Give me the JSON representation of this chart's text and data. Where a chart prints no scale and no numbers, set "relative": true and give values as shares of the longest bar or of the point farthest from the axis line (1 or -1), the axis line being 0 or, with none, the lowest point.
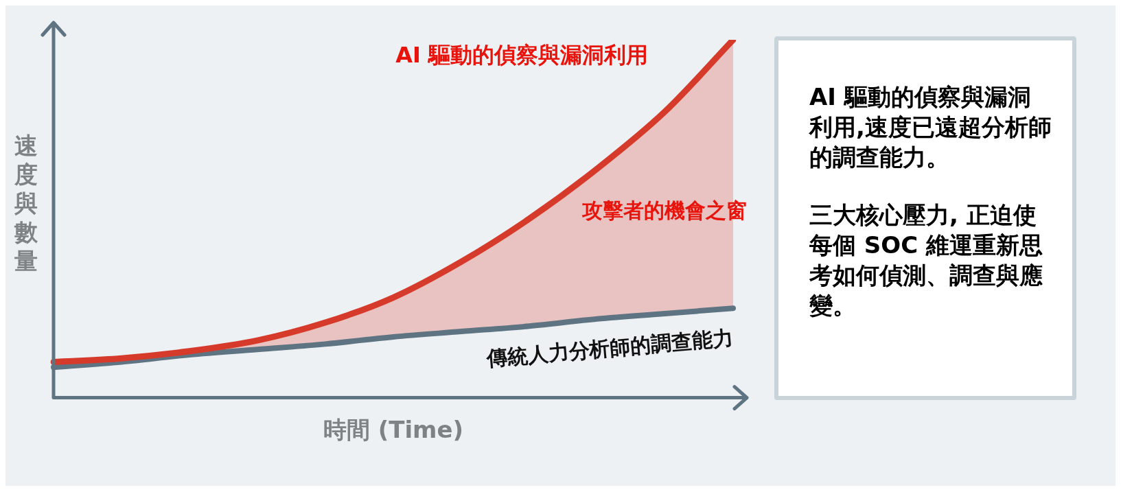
{
  "chart_data": [
    {
      "type": "line",
      "relative": true,
      "categories": [
        null,
        null,
        null,
        null,
        null,
        null,
        null,
        null,
        null,
        null,
        null
      ],
      "series": [
        {
          "name": "AI 驅動的偵察與漏洞利用",
          "color": "#d63a2a",
          "values": [
            0.1,
            0.11,
            0.13,
            0.16,
            0.21,
            0.28,
            0.38,
            0.5,
            0.64,
            0.8,
            1.0
          ],
          "lower": [
            0.085,
            0.1,
            0.12,
            0.135,
            0.15,
            0.17,
            0.185,
            0.2,
            0.22,
            0.235,
            0.25
          ],
          "upper": [
            0.1,
            0.11,
            0.13,
            0.16,
            0.21,
            0.28,
            0.38,
            0.5,
            0.64,
            0.8,
            1.0
          ]
        },
        {
          "name": "傳統人力分析師的調查能力",
          "color": "#5f7482",
          "values": [
            0.085,
            0.1,
            0.12,
            0.135,
            0.15,
            0.17,
            0.185,
            0.2,
            0.22,
            0.235,
            0.25
          ]
        }
      ],
      "xlabel": "時間 (Time)",
      "ylabel": "速度與數量",
      "annotations": [
        "攻擊者的機會之窗"
      ],
      "legend": false,
      "marker": "none",
      "line_style": "solid"
    },
    {
      "type": "other",
      "annotations": [
        "AI 驅動的偵察與漏洞利用,速度已遠超分析師的調查能力。",
        "三大核心壓力, 正迫使每個 SOC 維運重新思考如何偵測、調查與應變。"
      ]
    }
  ]
}
